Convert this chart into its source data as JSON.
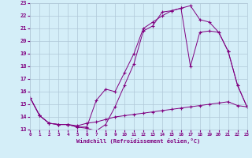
{
  "xlabel": "Windchill (Refroidissement éolien,°C)",
  "bg_color": "#d4eef8",
  "line_color": "#800080",
  "grid_color": "#b0c8d8",
  "xlim": [
    0,
    23
  ],
  "ylim": [
    13,
    23
  ],
  "yticks": [
    13,
    14,
    15,
    16,
    17,
    18,
    19,
    20,
    21,
    22,
    23
  ],
  "xticks": [
    0,
    1,
    2,
    3,
    4,
    5,
    6,
    7,
    8,
    9,
    10,
    11,
    12,
    13,
    14,
    15,
    16,
    17,
    18,
    19,
    20,
    21,
    22,
    23
  ],
  "line1_x": [
    0,
    1,
    2,
    3,
    4,
    5,
    6,
    7,
    8,
    9,
    10,
    11,
    12,
    13,
    14,
    15,
    16,
    17,
    18,
    19,
    20,
    21,
    22,
    23
  ],
  "line1_y": [
    15.5,
    14.1,
    13.5,
    13.4,
    13.4,
    13.2,
    13.1,
    12.9,
    13.4,
    14.8,
    16.5,
    18.2,
    20.8,
    21.2,
    22.3,
    22.4,
    22.6,
    22.8,
    21.7,
    21.5,
    20.7,
    19.2,
    16.5,
    14.8
  ],
  "line2_x": [
    0,
    1,
    2,
    3,
    4,
    5,
    6,
    7,
    8,
    9,
    10,
    11,
    12,
    13,
    14,
    15,
    16,
    17,
    18,
    19,
    20,
    21,
    22,
    23
  ],
  "line2_y": [
    15.5,
    14.1,
    13.5,
    13.4,
    13.4,
    13.2,
    13.2,
    15.3,
    16.2,
    16.0,
    17.5,
    19.0,
    21.0,
    21.5,
    22.0,
    22.4,
    22.6,
    18.0,
    20.7,
    20.8,
    20.7,
    19.2,
    16.5,
    14.8
  ],
  "line3_x": [
    0,
    1,
    2,
    3,
    4,
    5,
    6,
    7,
    8,
    9,
    10,
    11,
    12,
    13,
    14,
    15,
    16,
    17,
    18,
    19,
    20,
    21,
    22,
    23
  ],
  "line3_y": [
    15.5,
    14.1,
    13.5,
    13.4,
    13.4,
    13.3,
    13.5,
    13.6,
    13.8,
    14.0,
    14.1,
    14.2,
    14.3,
    14.4,
    14.5,
    14.6,
    14.7,
    14.8,
    14.9,
    15.0,
    15.1,
    15.2,
    14.9,
    14.8
  ]
}
